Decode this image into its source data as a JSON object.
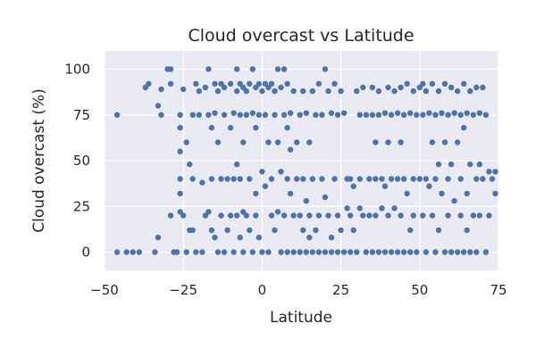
{
  "chart_data": {
    "type": "scatter",
    "title": "Cloud overcast vs Latitude",
    "xlabel": "Latitude",
    "ylabel": "Cloud overcast (%)",
    "xlim": [
      -50,
      75
    ],
    "ylim": [
      -10,
      110
    ],
    "x_ticks": [
      -50,
      -25,
      0,
      25,
      50,
      75
    ],
    "y_ticks": [
      0,
      25,
      50,
      75,
      100
    ],
    "grid": true,
    "legend": "none",
    "colors": {
      "background": "#eaeaf2",
      "grid": "#ffffff",
      "marker": "#4c72b0",
      "text": "#262626"
    },
    "series": [
      {
        "points": [
          [
            -46,
            75
          ],
          [
            -46,
            0
          ],
          [
            -43,
            0
          ],
          [
            -41,
            0
          ],
          [
            -39,
            0
          ],
          [
            -37,
            90
          ],
          [
            -36,
            92
          ],
          [
            -34,
            0
          ],
          [
            -33,
            80
          ],
          [
            -33,
            8
          ],
          [
            -32,
            89
          ],
          [
            -32,
            75
          ],
          [
            -30,
            100
          ],
          [
            -29,
            100
          ],
          [
            -29,
            92
          ],
          [
            -29,
            20
          ],
          [
            -28,
            0
          ],
          [
            -27,
            0
          ],
          [
            -26,
            75
          ],
          [
            -26,
            68
          ],
          [
            -26,
            55
          ],
          [
            -26,
            40
          ],
          [
            -26,
            32
          ],
          [
            -26,
            22
          ],
          [
            -25,
            89
          ],
          [
            -25,
            20
          ],
          [
            -24,
            60
          ],
          [
            -24,
            0
          ],
          [
            -23,
            48
          ],
          [
            -23,
            12
          ],
          [
            -22,
            75
          ],
          [
            -22,
            40
          ],
          [
            -22,
            12
          ],
          [
            -21,
            92
          ],
          [
            -21,
            0
          ],
          [
            -20,
            88
          ],
          [
            -20,
            75
          ],
          [
            -19,
            38
          ],
          [
            -19,
            0
          ],
          [
            -18,
            90
          ],
          [
            -18,
            20
          ],
          [
            -17,
            100
          ],
          [
            -17,
            75
          ],
          [
            -17,
            22
          ],
          [
            -16,
            68
          ],
          [
            -16,
            40
          ],
          [
            -16,
            12
          ],
          [
            -15,
            92
          ],
          [
            -15,
            76
          ],
          [
            -15,
            8
          ],
          [
            -14,
            88
          ],
          [
            -14,
            60
          ],
          [
            -14,
            0
          ],
          [
            -13,
            92
          ],
          [
            -13,
            40
          ],
          [
            -13,
            20
          ],
          [
            -12,
            90
          ],
          [
            -12,
            75
          ],
          [
            -12,
            0
          ],
          [
            -11,
            40
          ],
          [
            -11,
            12
          ],
          [
            -10,
            92
          ],
          [
            -10,
            68
          ],
          [
            -10,
            20
          ],
          [
            -9,
            76
          ],
          [
            -9,
            40
          ],
          [
            -9,
            0
          ],
          [
            -8,
            100
          ],
          [
            -8,
            88
          ],
          [
            -8,
            48
          ],
          [
            -8,
            20
          ],
          [
            -7,
            92
          ],
          [
            -7,
            75
          ],
          [
            -7,
            40
          ],
          [
            -7,
            8
          ],
          [
            -6,
            90
          ],
          [
            -6,
            60
          ],
          [
            -6,
            22
          ],
          [
            -6,
            0
          ],
          [
            -5,
            88
          ],
          [
            -5,
            75
          ],
          [
            -5,
            20
          ],
          [
            -4,
            92
          ],
          [
            -4,
            40
          ],
          [
            -4,
            12
          ],
          [
            -3,
            100
          ],
          [
            -3,
            76
          ],
          [
            -3,
            0
          ],
          [
            -2,
            90
          ],
          [
            -2,
            68
          ],
          [
            -2,
            32
          ],
          [
            -2,
            20
          ],
          [
            -1,
            92
          ],
          [
            -1,
            75
          ],
          [
            -1,
            8
          ],
          [
            0,
            88
          ],
          [
            0,
            44
          ],
          [
            0,
            0
          ],
          [
            1,
            92
          ],
          [
            1,
            75
          ],
          [
            1,
            36
          ],
          [
            2,
            90
          ],
          [
            2,
            60
          ],
          [
            2,
            0
          ],
          [
            3,
            92
          ],
          [
            3,
            40
          ],
          [
            3,
            20
          ],
          [
            4,
            88
          ],
          [
            4,
            75
          ],
          [
            4,
            12
          ],
          [
            5,
            100
          ],
          [
            5,
            60
          ],
          [
            5,
            22
          ],
          [
            6,
            90
          ],
          [
            6,
            44
          ],
          [
            6,
            0
          ],
          [
            7,
            100
          ],
          [
            7,
            75
          ],
          [
            7,
            20
          ],
          [
            8,
            92
          ],
          [
            8,
            68
          ],
          [
            8,
            40
          ],
          [
            8,
            0
          ],
          [
            9,
            76
          ],
          [
            9,
            56
          ],
          [
            9,
            32
          ],
          [
            10,
            88
          ],
          [
            10,
            20
          ],
          [
            10,
            0
          ],
          [
            11,
            60
          ],
          [
            11,
            40
          ],
          [
            12,
            75
          ],
          [
            12,
            20
          ],
          [
            12,
            0
          ],
          [
            13,
            88
          ],
          [
            13,
            40
          ],
          [
            13,
            12
          ],
          [
            14,
            76
          ],
          [
            14,
            28
          ],
          [
            14,
            0
          ],
          [
            15,
            60
          ],
          [
            15,
            20
          ],
          [
            15,
            8
          ],
          [
            16,
            88
          ],
          [
            16,
            40
          ],
          [
            16,
            0
          ],
          [
            17,
            75
          ],
          [
            17,
            12
          ],
          [
            18,
            92
          ],
          [
            18,
            20
          ],
          [
            18,
            0
          ],
          [
            19,
            75
          ],
          [
            19,
            40
          ],
          [
            20,
            100
          ],
          [
            20,
            30
          ],
          [
            20,
            0
          ],
          [
            21,
            88
          ],
          [
            21,
            20
          ],
          [
            22,
            76
          ],
          [
            22,
            8
          ],
          [
            22,
            0
          ],
          [
            23,
            92
          ],
          [
            23,
            40
          ],
          [
            24,
            75
          ],
          [
            24,
            20
          ],
          [
            24,
            0
          ],
          [
            25,
            88
          ],
          [
            25,
            12
          ],
          [
            26,
            76
          ],
          [
            26,
            0
          ],
          [
            27,
            40
          ],
          [
            27,
            24
          ],
          [
            28,
            40
          ],
          [
            28,
            20
          ],
          [
            28,
            0
          ],
          [
            29,
            36
          ],
          [
            29,
            12
          ],
          [
            30,
            88
          ],
          [
            30,
            0
          ],
          [
            31,
            75
          ],
          [
            31,
            40
          ],
          [
            31,
            24
          ],
          [
            32,
            90
          ],
          [
            32,
            20
          ],
          [
            33,
            75
          ],
          [
            33,
            0
          ],
          [
            34,
            40
          ],
          [
            34,
            20
          ],
          [
            35,
            90
          ],
          [
            35,
            75
          ],
          [
            35,
            0
          ],
          [
            36,
            60
          ],
          [
            36,
            40
          ],
          [
            36,
            20
          ],
          [
            37,
            88
          ],
          [
            37,
            75
          ],
          [
            37,
            0
          ],
          [
            38,
            40
          ],
          [
            38,
            24
          ],
          [
            39,
            76
          ],
          [
            39,
            36
          ],
          [
            39,
            0
          ],
          [
            40,
            90
          ],
          [
            40,
            60
          ],
          [
            40,
            20
          ],
          [
            41,
            75
          ],
          [
            41,
            40
          ],
          [
            41,
            0
          ],
          [
            42,
            88
          ],
          [
            42,
            24
          ],
          [
            43,
            76
          ],
          [
            43,
            40
          ],
          [
            43,
            0
          ],
          [
            44,
            90
          ],
          [
            44,
            60
          ],
          [
            44,
            20
          ],
          [
            45,
            75
          ],
          [
            45,
            40
          ],
          [
            45,
            0
          ],
          [
            46,
            92
          ],
          [
            46,
            32
          ],
          [
            47,
            76
          ],
          [
            47,
            12
          ],
          [
            47,
            0
          ],
          [
            48,
            88
          ],
          [
            48,
            40
          ],
          [
            48,
            20
          ],
          [
            49,
            75
          ],
          [
            49,
            0
          ],
          [
            50,
            90
          ],
          [
            50,
            40
          ],
          [
            51,
            92
          ],
          [
            51,
            75
          ],
          [
            51,
            20
          ],
          [
            52,
            88
          ],
          [
            52,
            40
          ],
          [
            52,
            0
          ],
          [
            53,
            76
          ],
          [
            53,
            36
          ],
          [
            54,
            92
          ],
          [
            54,
            60
          ],
          [
            54,
            20
          ],
          [
            55,
            75
          ],
          [
            55,
            40
          ],
          [
            55,
            0
          ],
          [
            56,
            88
          ],
          [
            56,
            48
          ],
          [
            56,
            12
          ],
          [
            57,
            76
          ],
          [
            57,
            32
          ],
          [
            58,
            92
          ],
          [
            58,
            60
          ],
          [
            58,
            0
          ],
          [
            59,
            75
          ],
          [
            59,
            40
          ],
          [
            59,
            20
          ],
          [
            60,
            90
          ],
          [
            60,
            48
          ],
          [
            60,
            0
          ],
          [
            61,
            76
          ],
          [
            61,
            28
          ],
          [
            62,
            88
          ],
          [
            62,
            60
          ],
          [
            62,
            0
          ],
          [
            63,
            75
          ],
          [
            63,
            40
          ],
          [
            63,
            20
          ],
          [
            64,
            92
          ],
          [
            64,
            68
          ],
          [
            64,
            0
          ],
          [
            65,
            76
          ],
          [
            65,
            32
          ],
          [
            65,
            12
          ],
          [
            66,
            88
          ],
          [
            66,
            48
          ],
          [
            66,
            0
          ],
          [
            67,
            75
          ],
          [
            67,
            20
          ],
          [
            68,
            90
          ],
          [
            68,
            40
          ],
          [
            68,
            0
          ],
          [
            69,
            76
          ],
          [
            69,
            48
          ],
          [
            69,
            20
          ],
          [
            70,
            90
          ],
          [
            70,
            40
          ],
          [
            71,
            75
          ],
          [
            71,
            0
          ],
          [
            72,
            44
          ],
          [
            72,
            20
          ],
          [
            73,
            40
          ],
          [
            74,
            32
          ],
          [
            74,
            44
          ]
        ]
      }
    ]
  }
}
